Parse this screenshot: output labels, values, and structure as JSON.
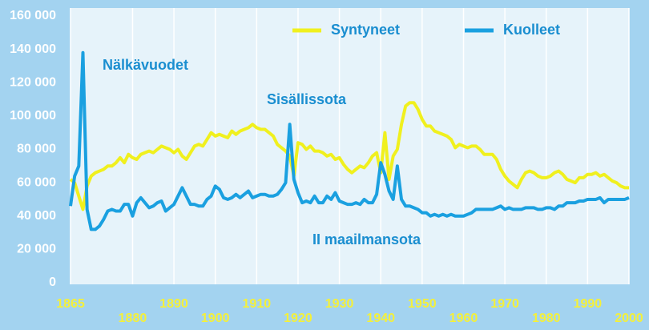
{
  "chart_data": {
    "type": "line",
    "annotations": [
      "Nälkävuodet",
      "Sisällissota",
      "II maailmansota"
    ],
    "legend": "top-right",
    "x": [
      1865,
      1866,
      1867,
      1868,
      1869,
      1870,
      1871,
      1872,
      1873,
      1874,
      1875,
      1876,
      1877,
      1878,
      1879,
      1880,
      1881,
      1882,
      1883,
      1884,
      1885,
      1886,
      1887,
      1888,
      1889,
      1890,
      1891,
      1892,
      1893,
      1894,
      1895,
      1896,
      1897,
      1898,
      1899,
      1900,
      1901,
      1902,
      1903,
      1904,
      1905,
      1906,
      1907,
      1908,
      1909,
      1910,
      1911,
      1912,
      1913,
      1914,
      1915,
      1916,
      1917,
      1918,
      1919,
      1920,
      1921,
      1922,
      1923,
      1924,
      1925,
      1926,
      1927,
      1928,
      1929,
      1930,
      1931,
      1932,
      1933,
      1934,
      1935,
      1936,
      1937,
      1938,
      1939,
      1940,
      1941,
      1942,
      1943,
      1944,
      1945,
      1946,
      1947,
      1948,
      1949,
      1950,
      1951,
      1952,
      1953,
      1954,
      1955,
      1956,
      1957,
      1958,
      1959,
      1960,
      1961,
      1962,
      1963,
      1964,
      1965,
      1966,
      1967,
      1968,
      1969,
      1970,
      1971,
      1972,
      1973,
      1974,
      1975,
      1976,
      1977,
      1978,
      1979,
      1980,
      1981,
      1982,
      1983,
      1984,
      1985,
      1986,
      1987,
      1988,
      1989,
      1990,
      1991,
      1992,
      1993,
      1994,
      1995,
      1996,
      1997,
      1998,
      1999,
      2000
    ],
    "series": [
      {
        "name": "Syntyneet",
        "color": "#f0f01e",
        "values": [
          62000,
          60000,
          52000,
          44000,
          58000,
          64000,
          66000,
          67000,
          68000,
          70000,
          70000,
          72000,
          75000,
          72000,
          77000,
          75000,
          74000,
          77000,
          78000,
          79000,
          78000,
          80000,
          82000,
          81000,
          80000,
          78000,
          80000,
          76000,
          74000,
          78000,
          82000,
          83000,
          82000,
          86000,
          90000,
          88000,
          89000,
          88000,
          87000,
          91000,
          89000,
          91000,
          92000,
          93000,
          95000,
          93000,
          92000,
          92000,
          90000,
          88000,
          83000,
          81000,
          79000,
          76000,
          64000,
          84000,
          83000,
          80000,
          82000,
          79000,
          79000,
          78000,
          76000,
          77000,
          74000,
          75000,
          71000,
          68000,
          66000,
          68000,
          70000,
          69000,
          72000,
          76000,
          78000,
          66000,
          90000,
          62000,
          76000,
          80000,
          95000,
          106000,
          108000,
          108000,
          104000,
          98000,
          94000,
          94000,
          91000,
          90000,
          89000,
          88000,
          86000,
          81000,
          83000,
          82000,
          81000,
          82000,
          82000,
          80000,
          77000,
          77000,
          77000,
          74000,
          68000,
          64000,
          61000,
          59000,
          57000,
          62000,
          66000,
          67000,
          66000,
          64000,
          63000,
          63000,
          64000,
          66000,
          67000,
          65000,
          62000,
          61000,
          60000,
          63000,
          63000,
          65000,
          65000,
          66000,
          64000,
          65000,
          63000,
          61000,
          60000,
          58000,
          57000,
          57000
        ]
      },
      {
        "name": "Kuolleet",
        "color": "#1aa0e0",
        "values": [
          46000,
          64000,
          70000,
          138000,
          44000,
          32000,
          32000,
          34000,
          38000,
          43000,
          44000,
          43000,
          43000,
          47000,
          47000,
          40000,
          48000,
          51000,
          48000,
          45000,
          46000,
          48000,
          49000,
          43000,
          45000,
          47000,
          52000,
          57000,
          52000,
          47000,
          47000,
          46000,
          46000,
          50000,
          52000,
          58000,
          56000,
          51000,
          50000,
          51000,
          53000,
          51000,
          53000,
          55000,
          51000,
          52000,
          53000,
          53000,
          52000,
          52000,
          53000,
          56000,
          60000,
          95000,
          62000,
          54000,
          48000,
          49000,
          48000,
          52000,
          48000,
          48000,
          52000,
          50000,
          54000,
          49000,
          48000,
          47000,
          47000,
          48000,
          47000,
          50000,
          48000,
          48000,
          53000,
          72000,
          65000,
          55000,
          50000,
          70000,
          50000,
          46000,
          46000,
          45000,
          44000,
          42000,
          42000,
          40000,
          41000,
          40000,
          41000,
          40000,
          41000,
          40000,
          40000,
          40000,
          41000,
          42000,
          44000,
          44000,
          44000,
          44000,
          44000,
          45000,
          46000,
          44000,
          45000,
          44000,
          44000,
          44000,
          45000,
          45000,
          45000,
          44000,
          44000,
          45000,
          45000,
          44000,
          46000,
          46000,
          48000,
          48000,
          48000,
          49000,
          49000,
          50000,
          50000,
          50000,
          51000,
          48000,
          50000,
          50000,
          50000,
          50000,
          50000,
          51000
        ]
      }
    ],
    "xlim": [
      1865,
      2000
    ],
    "xticks": [
      1865,
      1880,
      1890,
      1900,
      1910,
      1920,
      1930,
      1940,
      1950,
      1960,
      1970,
      1980,
      1990,
      2000
    ],
    "ylim": [
      0,
      160000
    ],
    "yticks": [
      0,
      {
        "value": 20000,
        "label": "20 000"
      },
      {
        "value": 40000,
        "label": "40 000"
      },
      {
        "value": 60000,
        "label": "60 000"
      },
      {
        "value": 80000,
        "label": "80 000"
      },
      {
        "value": 100000,
        "label": "100 000"
      },
      {
        "value": 120000,
        "label": "120 000"
      },
      {
        "value": 140000,
        "label": "140 000"
      },
      {
        "value": 160000,
        "label": "160 000"
      }
    ],
    "grid": true
  }
}
